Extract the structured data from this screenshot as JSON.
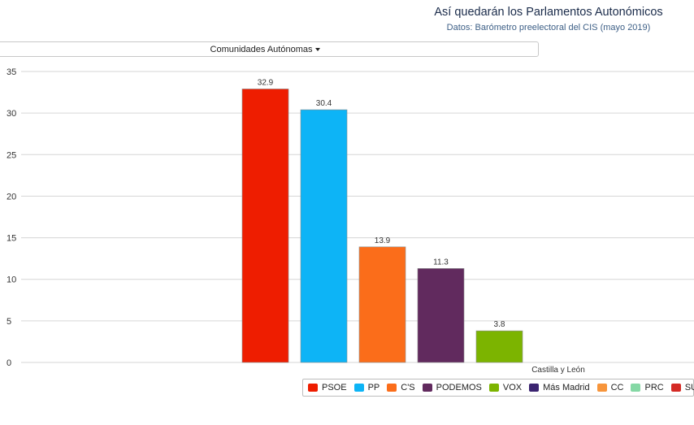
{
  "header": {
    "title": "Así quedarán los Parlamentos Autonómicos",
    "subtitle": "Datos: Barómetro preelectoral del CIS (mayo 2019)"
  },
  "selector": {
    "label": "Comunidades Autónomas"
  },
  "chart_data": {
    "type": "bar",
    "categories": [
      "Castilla y León"
    ],
    "series": [
      {
        "name": "PSOE",
        "values": [
          32.9
        ],
        "color": "#ee1d00"
      },
      {
        "name": "PP",
        "values": [
          30.4
        ],
        "color": "#0db4f6"
      },
      {
        "name": "C'S",
        "values": [
          13.9
        ],
        "color": "#fb6d1a"
      },
      {
        "name": "PODEMOS",
        "values": [
          11.3
        ],
        "color": "#612a5e"
      },
      {
        "name": "VOX",
        "values": [
          3.8
        ],
        "color": "#7cb400"
      },
      {
        "name": "Más Madrid",
        "values": [
          null
        ],
        "color": "#3b2470"
      },
      {
        "name": "CC",
        "values": [
          null
        ],
        "color": "#f7953b"
      },
      {
        "name": "PRC",
        "values": [
          null
        ],
        "color": "#85d8a5"
      },
      {
        "name": "SUMA",
        "values": [
          null
        ],
        "color": "#d42a25"
      }
    ],
    "yticks": [
      0,
      5,
      10,
      15,
      20,
      25,
      30,
      35
    ],
    "ylim": [
      0,
      35
    ],
    "grid": true,
    "legend_position": "bottom-right"
  }
}
